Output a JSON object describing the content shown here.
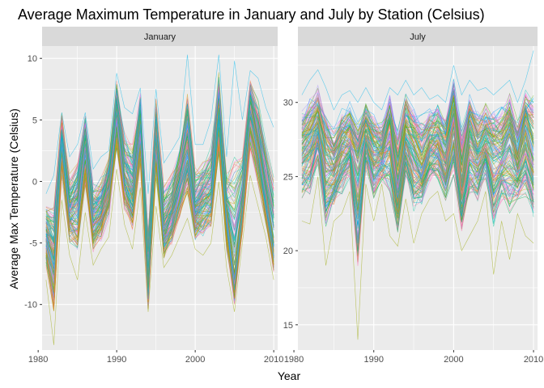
{
  "chart_data": {
    "type": "line",
    "title": "Average Maximum Temperature in January and July by Station (Celsius)",
    "xlabel": "Year",
    "ylabel": "Average Max Temperature (Celsius)",
    "grid": true,
    "legend": "none",
    "years": [
      1981,
      1982,
      1983,
      1984,
      1985,
      1986,
      1987,
      1988,
      1989,
      1990,
      1991,
      1992,
      1993,
      1994,
      1995,
      1996,
      1997,
      1998,
      1999,
      2000,
      2001,
      2002,
      2003,
      2004,
      2005,
      2006,
      2007,
      2008,
      2009,
      2010
    ],
    "series_note": "many overlapping station lines per facet; values below are representative station series and envelope",
    "colors": [
      "#F8766D",
      "#E38900",
      "#C49A00",
      "#99A800",
      "#53B400",
      "#00BC56",
      "#00C094",
      "#00BFC4",
      "#00B6EB",
      "#06A4FF",
      "#A58AFF",
      "#DF70F8",
      "#FB61D7",
      "#FF66A8"
    ],
    "panels": [
      {
        "strip": "January",
        "xlim": [
          1980.5,
          2010.5
        ],
        "ylim": [
          -13.7,
          11.0
        ],
        "x_ticks": [
          1980,
          1990,
          2000,
          2010
        ],
        "x_tick_labels": [
          "1980",
          "1990",
          "2000",
          "2010"
        ],
        "y_ticks": [
          -10,
          -5,
          0,
          5,
          10
        ],
        "y_tick_labels": [
          "-10",
          "-5",
          "0",
          "5",
          "10"
        ],
        "center": [
          -4.2,
          -6.0,
          4.1,
          -2.3,
          -1.5,
          3.6,
          -3.0,
          -2.5,
          0.0,
          6.0,
          0.5,
          -1.0,
          5.3,
          -8.5,
          4.3,
          -4.0,
          -2.6,
          0.2,
          3.0,
          -2.5,
          -1.2,
          -1.0,
          6.0,
          -2.5,
          -8.0,
          -2.0,
          6.3,
          3.2,
          -1.0,
          -5.2
        ],
        "low": [
          -8.0,
          -13.3,
          -1.5,
          -6.0,
          -8.0,
          -2.5,
          -6.8,
          -5.5,
          -4.5,
          1.0,
          -3.5,
          -5.5,
          -0.5,
          -10.6,
          -2.0,
          -7.0,
          -6.0,
          -4.5,
          -3.0,
          -5.5,
          -6.0,
          -5.0,
          0.0,
          -7.0,
          -10.6,
          -5.0,
          0.5,
          -2.0,
          -4.5,
          -8.0
        ],
        "high": [
          -1.0,
          0.5,
          5.6,
          2.0,
          3.0,
          5.6,
          1.0,
          2.0,
          2.5,
          8.8,
          6.0,
          5.5,
          7.6,
          -1.0,
          7.5,
          1.5,
          2.5,
          3.6,
          10.3,
          3.0,
          3.0,
          5.0,
          10.3,
          2.0,
          9.8,
          5.0,
          9.0,
          8.4,
          6.0,
          4.4
        ]
      },
      {
        "strip": "July",
        "xlim": [
          1980.5,
          2010.5
        ],
        "ylim": [
          13.3,
          33.8
        ],
        "x_ticks": [
          1980,
          1990,
          2000,
          2010
        ],
        "x_tick_labels": [
          "1980",
          "1990",
          "2000",
          "2010"
        ],
        "y_ticks": [
          15,
          20,
          25,
          30
        ],
        "y_tick_labels": [
          "15",
          "20",
          "25",
          "30"
        ],
        "center": [
          26.8,
          27.5,
          28.5,
          26.0,
          25.5,
          27.0,
          27.5,
          26.0,
          28.0,
          26.8,
          26.5,
          28.5,
          24.0,
          28.0,
          26.8,
          25.5,
          27.2,
          27.5,
          26.5,
          29.5,
          24.2,
          28.0,
          26.5,
          27.5,
          26.8,
          26.5,
          28.0,
          25.8,
          28.5,
          26.0
        ],
        "low": [
          22.0,
          21.8,
          25.0,
          19.0,
          22.0,
          22.5,
          24.0,
          14.0,
          24.5,
          22.0,
          24.5,
          21.0,
          20.3,
          23.5,
          20.5,
          22.5,
          23.5,
          24.0,
          22.0,
          22.5,
          20.0,
          21.0,
          22.0,
          24.0,
          18.4,
          22.0,
          19.4,
          22.5,
          21.0,
          20.5
        ],
        "high": [
          30.5,
          31.5,
          32.2,
          31.0,
          29.5,
          30.5,
          30.8,
          30.0,
          31.0,
          30.0,
          29.5,
          31.0,
          30.5,
          31.5,
          30.5,
          31.0,
          30.2,
          30.5,
          30.0,
          32.5,
          30.5,
          31.5,
          30.8,
          31.0,
          30.5,
          31.0,
          31.5,
          30.0,
          31.5,
          33.5
        ]
      }
    ]
  }
}
